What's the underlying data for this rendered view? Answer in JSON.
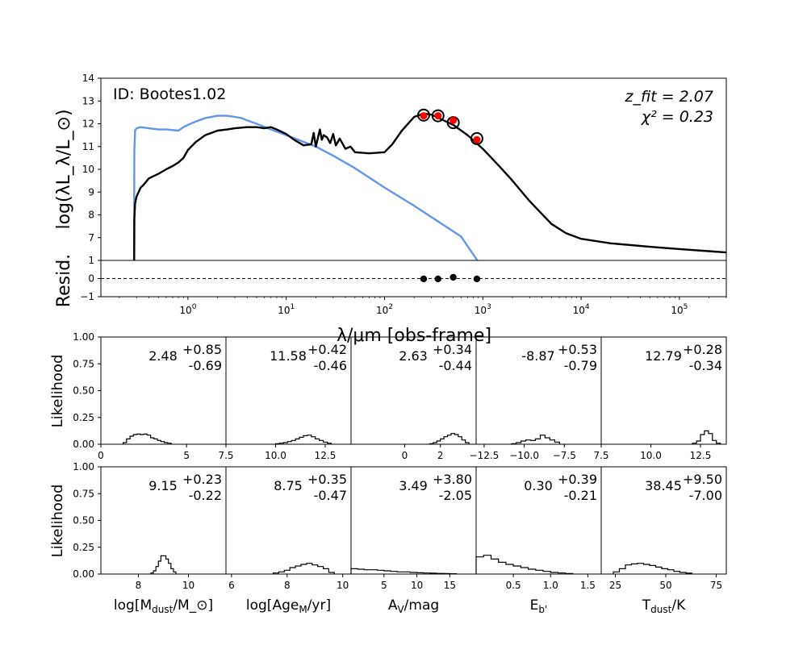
{
  "chart_data": [
    {
      "type": "line",
      "id": "sed",
      "annotation_id": "ID: Bootes1.02",
      "annotation_z": "z_fit = 2.07",
      "annotation_chi2": "χ² = 0.23",
      "ylabel": "log(λL_λ/L_⊙)",
      "xlabel": "λ/μm [obs-frame]",
      "xscale": "log",
      "xlim": [
        0.13,
        300000
      ],
      "ylim": [
        6,
        14
      ],
      "yticks": [
        "7",
        "8",
        "9",
        "10",
        "11",
        "12",
        "13",
        "14"
      ],
      "xticks": [
        "10^0",
        "10^1",
        "10^2",
        "10^3",
        "10^4",
        "10^5"
      ],
      "series": [
        {
          "color": "#6495ed",
          "x": [
            0.28,
            0.285,
            0.29,
            0.3,
            0.33,
            0.4,
            0.5,
            0.6,
            0.8,
            0.9,
            1.0,
            1.2,
            1.5,
            2.0,
            2.5,
            3.0,
            3.5,
            4.0,
            5.0,
            7.0,
            10,
            20,
            30,
            50,
            100,
            200,
            400,
            600,
            880
          ],
          "y": [
            0.5,
            10.8,
            11.7,
            11.8,
            11.85,
            11.8,
            11.75,
            11.75,
            11.7,
            11.85,
            11.95,
            12.1,
            12.25,
            12.35,
            12.35,
            12.3,
            12.25,
            12.15,
            12.0,
            11.75,
            11.5,
            11.0,
            10.6,
            10.05,
            9.2,
            8.4,
            7.55,
            7.05,
            6.0
          ]
        },
        {
          "color": "#000000",
          "x": [
            0.28,
            0.285,
            0.29,
            0.3,
            0.33,
            0.35,
            0.4,
            0.5,
            0.6,
            0.7,
            0.8,
            0.9,
            1.0,
            1.2,
            1.5,
            2.0,
            2.5,
            3.0,
            4.0,
            5.0,
            6.0,
            7.0,
            8.0,
            10,
            12,
            15,
            18,
            19,
            20,
            22,
            23,
            24,
            26,
            28,
            30,
            32,
            35,
            40,
            45,
            50,
            70,
            100,
            120,
            150,
            200,
            250,
            300,
            400,
            500,
            700,
            1000,
            1500,
            2000,
            3000,
            5000,
            7000,
            10000,
            20000,
            50000,
            100000,
            300000
          ],
          "y": [
            0.5,
            7.8,
            8.5,
            8.8,
            9.2,
            9.3,
            9.6,
            9.8,
            10.0,
            10.15,
            10.3,
            10.5,
            10.85,
            11.2,
            11.5,
            11.7,
            11.75,
            11.8,
            11.85,
            11.85,
            11.8,
            11.85,
            11.75,
            11.55,
            11.3,
            11.05,
            11.1,
            11.6,
            11.0,
            11.75,
            11.3,
            11.5,
            11.4,
            11.15,
            11.55,
            11.05,
            11.35,
            10.9,
            11.0,
            10.75,
            10.7,
            10.75,
            11.1,
            11.7,
            12.3,
            12.45,
            12.4,
            12.15,
            11.95,
            11.5,
            10.9,
            10.1,
            9.5,
            8.6,
            7.6,
            7.2,
            6.95,
            6.75,
            6.6,
            6.5,
            6.35
          ]
        }
      ],
      "points": {
        "x": [
          250,
          350,
          500,
          870
        ],
        "y": [
          12.35,
          12.35,
          12.15,
          11.3
        ],
        "model_y": [
          12.38,
          12.35,
          12.05,
          11.35
        ]
      }
    },
    {
      "type": "scatter",
      "id": "resid",
      "ylabel": "Resid.",
      "ylim": [
        -1,
        1
      ],
      "yticks": [
        "-1",
        "0",
        "1"
      ],
      "points": {
        "x": [
          250,
          350,
          500,
          870
        ],
        "y": [
          -0.02,
          -0.02,
          0.07,
          -0.02
        ]
      }
    }
  ],
  "posteriors": {
    "ylabel": "Likelihood",
    "yticks": [
      "0.00",
      "0.25",
      "0.50",
      "0.75",
      "1.00"
    ],
    "row1": [
      {
        "median": "2.48",
        "plus": "+0.85",
        "minus": "-0.69",
        "xlim": [
          0,
          7.3
        ],
        "xticks": [
          {
            "v": 0,
            "t": "0"
          },
          {
            "v": 5,
            "t": "5"
          }
        ],
        "edges": [
          1.3,
          1.5,
          1.7,
          1.9,
          2.1,
          2.3,
          2.5,
          2.7,
          2.9,
          3.1,
          3.3,
          3.5,
          3.7,
          3.9,
          4.1
        ],
        "heights": [
          0.015,
          0.05,
          0.075,
          0.09,
          0.095,
          0.09,
          0.095,
          0.085,
          0.06,
          0.05,
          0.035,
          0.025,
          0.015,
          0.01
        ]
      },
      {
        "median": "11.58",
        "plus": "+0.42",
        "minus": "-0.46",
        "xlim": [
          7.5,
          13.8
        ],
        "xticks": [
          {
            "v": 7.5,
            "t": "7.5"
          },
          {
            "v": 10,
            "t": "10.0"
          },
          {
            "v": 12.5,
            "t": "12.5"
          }
        ],
        "edges": [
          10.0,
          10.2,
          10.4,
          10.6,
          10.8,
          11.0,
          11.2,
          11.4,
          11.6,
          11.8,
          12.0,
          12.2,
          12.4,
          12.6,
          12.8
        ],
        "heights": [
          0.005,
          0.01,
          0.015,
          0.025,
          0.035,
          0.05,
          0.065,
          0.08,
          0.085,
          0.07,
          0.05,
          0.035,
          0.02,
          0.01
        ]
      },
      {
        "median": "2.63",
        "plus": "+0.34",
        "minus": "-0.44",
        "xlim": [
          -3.0,
          4.0
        ],
        "xticks": [
          {
            "v": 0,
            "t": "0"
          },
          {
            "v": 2,
            "t": "2"
          }
        ],
        "edges": [
          1.4,
          1.6,
          1.8,
          2.0,
          2.2,
          2.4,
          2.6,
          2.8,
          3.0,
          3.2,
          3.4,
          3.6
        ],
        "heights": [
          0.005,
          0.015,
          0.03,
          0.05,
          0.07,
          0.085,
          0.1,
          0.09,
          0.07,
          0.04,
          0.015
        ]
      },
      {
        "median": "-8.87",
        "plus": "+0.53",
        "minus": "-0.79",
        "xlim": [
          -13.0,
          -5.2
        ],
        "xticks": [
          {
            "v": -12.5,
            "t": "−12.5"
          },
          {
            "v": -10,
            "t": "−10.0"
          },
          {
            "v": -7.5,
            "t": "−7.5"
          }
        ],
        "edges": [
          -10.8,
          -10.5,
          -10.2,
          -9.9,
          -9.6,
          -9.3,
          -9.0,
          -8.7,
          -8.4,
          -8.1,
          -7.8
        ],
        "heights": [
          0.005,
          0.015,
          0.03,
          0.04,
          0.035,
          0.05,
          0.085,
          0.06,
          0.04,
          0.02
        ]
      },
      {
        "median": "12.79",
        "plus": "+0.28",
        "minus": "-0.34",
        "xlim": [
          7.5,
          13.8
        ],
        "xticks": [
          {
            "v": 7.5,
            "t": "7.5"
          },
          {
            "v": 10,
            "t": "10.0"
          },
          {
            "v": 12.5,
            "t": "12.5"
          }
        ],
        "edges": [
          12.1,
          12.3,
          12.5,
          12.7,
          12.9,
          13.1,
          13.3,
          13.5
        ],
        "heights": [
          0.01,
          0.03,
          0.09,
          0.125,
          0.1,
          0.035,
          0.01
        ]
      }
    ],
    "row2": [
      {
        "median": "9.15",
        "plus": "+0.23",
        "minus": "-0.22",
        "xlim": [
          6.5,
          11.5
        ],
        "xticks": [
          {
            "v": 8,
            "t": "8"
          },
          {
            "v": 10,
            "t": "10"
          }
        ],
        "xlabel": "log[M_dust/M_⊙]",
        "edges": [
          8.5,
          8.6,
          8.7,
          8.8,
          8.9,
          9.0,
          9.1,
          9.2,
          9.3,
          9.4,
          9.5
        ],
        "heights": [
          0.01,
          0.03,
          0.07,
          0.12,
          0.17,
          0.17,
          0.14,
          0.1,
          0.05,
          0.02
        ]
      },
      {
        "median": "8.75",
        "plus": "+0.35",
        "minus": "-0.47",
        "xlim": [
          5.8,
          10.3
        ],
        "xticks": [
          {
            "v": 6,
            "t": "6"
          },
          {
            "v": 8,
            "t": "8"
          },
          {
            "v": 10,
            "t": "10"
          }
        ],
        "xlabel": "log[Age_M/yr]",
        "edges": [
          7.5,
          7.7,
          7.9,
          8.1,
          8.3,
          8.5,
          8.7,
          8.9,
          9.1,
          9.3,
          9.5,
          9.7
        ],
        "heights": [
          0.01,
          0.02,
          0.035,
          0.06,
          0.075,
          0.09,
          0.1,
          0.085,
          0.07,
          0.05,
          0.015
        ]
      },
      {
        "median": "3.49",
        "plus": "+3.80",
        "minus": "-2.05",
        "xlim": [
          0,
          19
        ],
        "xticks": [
          {
            "v": 5,
            "t": "5"
          },
          {
            "v": 10,
            "t": "10"
          },
          {
            "v": 15,
            "t": "15"
          }
        ],
        "xlabel": "A_V/mag",
        "edges": [
          0,
          1,
          2,
          3,
          4,
          5,
          6,
          7,
          8,
          9,
          10,
          11,
          12,
          13,
          14,
          15,
          16
        ],
        "heights": [
          0.05,
          0.045,
          0.04,
          0.04,
          0.035,
          0.03,
          0.025,
          0.02,
          0.02,
          0.015,
          0.012,
          0.01,
          0.008,
          0.006,
          0.005,
          0.003
        ]
      },
      {
        "median": "0.30",
        "plus": "+0.39",
        "minus": "-0.21",
        "xlim": [
          0,
          1.68
        ],
        "xticks": [
          {
            "v": 0.5,
            "t": "0.5"
          },
          {
            "v": 1.0,
            "t": "1.0"
          },
          {
            "v": 1.5,
            "t": "1.5"
          }
        ],
        "xlabel": "E_b'",
        "edges": [
          0.0,
          0.1,
          0.2,
          0.3,
          0.4,
          0.5,
          0.6,
          0.7,
          0.8,
          0.9,
          1.0,
          1.1,
          1.2,
          1.3
        ],
        "heights": [
          0.16,
          0.175,
          0.14,
          0.11,
          0.09,
          0.075,
          0.06,
          0.045,
          0.035,
          0.025,
          0.015,
          0.01,
          0.005
        ]
      },
      {
        "median": "38.45",
        "plus": "+9.50",
        "minus": "-7.00",
        "xlim": [
          18,
          80
        ],
        "xticks": [
          {
            "v": 25,
            "t": "25"
          },
          {
            "v": 50,
            "t": "50"
          },
          {
            "v": 75,
            "t": "75"
          }
        ],
        "xlabel": "T_dust/K",
        "edges": [
          24,
          27,
          30,
          33,
          36,
          39,
          42,
          45,
          48,
          51,
          54,
          57,
          60,
          63
        ],
        "heights": [
          0.02,
          0.05,
          0.085,
          0.095,
          0.1,
          0.09,
          0.08,
          0.065,
          0.05,
          0.04,
          0.025,
          0.015,
          0.008
        ]
      }
    ]
  }
}
